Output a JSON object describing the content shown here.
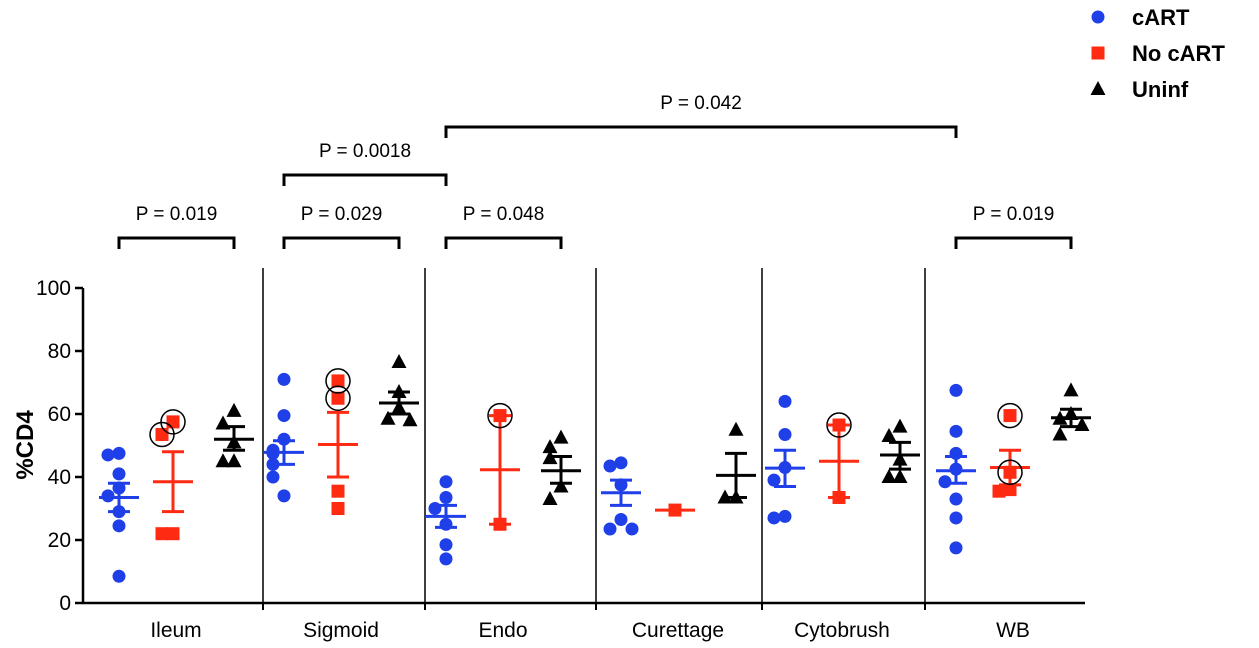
{
  "chart_data": {
    "type": "scatter",
    "ylabel": "%CD4",
    "ylim": [
      0,
      100
    ],
    "yticks": [
      "0",
      "20",
      "40",
      "60",
      "80",
      "100"
    ],
    "categories": [
      "Ileum",
      "Sigmoid",
      "Endo",
      "Curettage",
      "Cytobrush",
      "WB"
    ],
    "series": [
      {
        "name": "cART",
        "color": "#1f3fe8",
        "marker": "circle",
        "groups": [
          {
            "points": [
              47,
              47.5,
              41,
              36.5,
              34,
              29,
              24.5,
              8.5
            ],
            "mean": 33.5,
            "sem_low": 29,
            "sem_high": 38
          },
          {
            "points": [
              71,
              59.5,
              52,
              48.5,
              47.5,
              44,
              40,
              34
            ],
            "mean": 47.8,
            "sem_low": 44,
            "sem_high": 51.5
          },
          {
            "points": [
              38.5,
              33.5,
              30,
              25,
              18.5,
              14
            ],
            "mean": 27.5,
            "sem_low": 24,
            "sem_high": 31
          },
          {
            "points": [
              44.5,
              43.5,
              37.5,
              26.5,
              23.5,
              23.5
            ],
            "mean": 35,
            "sem_low": 31,
            "sem_high": 39
          },
          {
            "points": [
              64,
              53.5,
              43,
              39,
              27.5,
              27
            ],
            "mean": 42.8,
            "sem_low": 37,
            "sem_high": 48.5
          },
          {
            "points": [
              67.5,
              54.5,
              47.5,
              42.5,
              38.5,
              33,
              27,
              17.5
            ],
            "mean": 42,
            "sem_low": 38,
            "sem_high": 46.5
          }
        ]
      },
      {
        "name": "No cART",
        "color": "#ff2a12",
        "marker": "square",
        "groups": [
          {
            "points": [
              57.5,
              53.5,
              22,
              22
            ],
            "mean": 38.5,
            "sem_low": 29,
            "sem_high": 48
          },
          {
            "points": [
              70.5,
              65,
              35.5,
              30
            ],
            "mean": 50.3,
            "sem_low": 40,
            "sem_high": 60.5
          },
          {
            "points": [
              59.5,
              25
            ],
            "mean": 42.3,
            "sem_low": 25,
            "sem_high": 59.5
          },
          {
            "points": [
              29.5
            ],
            "mean": 29.5,
            "sem_low": 29.5,
            "sem_high": 29.5
          },
          {
            "points": [
              56.5,
              33.5
            ],
            "mean": 45,
            "sem_low": 33.5,
            "sem_high": 56.5
          },
          {
            "points": [
              59.5,
              41.5,
              36,
              35.5
            ],
            "mean": 43,
            "sem_low": 37.5,
            "sem_high": 48.5
          }
        ]
      },
      {
        "name": "Uninf",
        "color": "#000000",
        "marker": "triangle",
        "groups": [
          {
            "points": [
              61,
              57,
              51,
              45,
              45
            ],
            "mean": 52,
            "sem_low": 48.5,
            "sem_high": 56
          },
          {
            "points": [
              76.5,
              67,
              62,
              58.5,
              58
            ],
            "mean": 63.5,
            "sem_low": 60,
            "sem_high": 67
          },
          {
            "points": [
              52.5,
              49.5,
              46,
              37,
              33
            ],
            "mean": 42,
            "sem_low": 38,
            "sem_high": 46.5
          },
          {
            "points": [
              55,
              33.5,
              33.5
            ],
            "mean": 40.5,
            "sem_low": 33.5,
            "sem_high": 47.5
          },
          {
            "points": [
              56,
              53,
              45.5,
              40,
              40
            ],
            "mean": 47,
            "sem_low": 42.5,
            "sem_high": 51
          },
          {
            "points": [
              67.5,
              60,
              58.5,
              56.5,
              53.5
            ],
            "mean": 58.8,
            "sem_low": 56,
            "sem_high": 61.5
          }
        ]
      }
    ],
    "circled": [
      {
        "group": 0,
        "series": 1,
        "value": 57.5
      },
      {
        "group": 0,
        "series": 1,
        "value": 53.5
      },
      {
        "group": 1,
        "series": 1,
        "value": 70.5
      },
      {
        "group": 1,
        "series": 1,
        "value": 65
      },
      {
        "group": 2,
        "series": 1,
        "value": 59.5
      },
      {
        "group": 4,
        "series": 1,
        "value": 56.5
      },
      {
        "group": 5,
        "series": 1,
        "value": 59.5
      },
      {
        "group": 5,
        "series": 1,
        "value": 41.5
      }
    ],
    "pvalues": [
      {
        "label": "P = 0.019",
        "from_group": 0,
        "from_series": 0,
        "to_group": 0,
        "to_series": 2,
        "level": 1
      },
      {
        "label": "P = 0.029",
        "from_group": 1,
        "from_series": 0,
        "to_group": 1,
        "to_series": 2,
        "level": 1
      },
      {
        "label": "P = 0.048",
        "from_group": 2,
        "from_series": 0,
        "to_group": 2,
        "to_series": 2,
        "level": 1
      },
      {
        "label": "P = 0.019",
        "from_group": 5,
        "from_series": 0,
        "to_group": 5,
        "to_series": 2,
        "level": 1
      },
      {
        "label": "P = 0.0018",
        "from_group": 1,
        "from_series": 0,
        "to_group": 2,
        "to_series": 0,
        "level": 2
      },
      {
        "label": "P = 0.042",
        "from_group": 2,
        "from_series": 0,
        "to_group": 5,
        "to_series": 0,
        "level": 3
      }
    ],
    "legend": {
      "position": "top-right",
      "entries": [
        "cART",
        "No cART",
        "Uninf"
      ]
    },
    "grid": false
  }
}
